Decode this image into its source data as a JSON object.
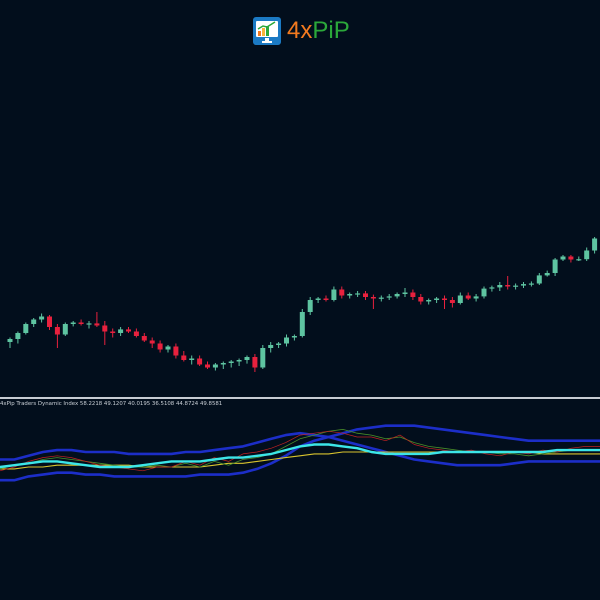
{
  "logo": {
    "text_a": "4x",
    "text_b": "PiP",
    "colors": {
      "orange": "#f37a1f",
      "green": "#2ba83a",
      "icon_bg": "#1b7ac4"
    },
    "icon": "monitor-chart-icon"
  },
  "indicator": {
    "label": "4xPip Traders Dynamic Index 58.2218 49.1207 40.0195 36.5108 44.8724 49.8581"
  },
  "colors": {
    "background": "#020e1c",
    "bull": "#5ec4a1",
    "bear": "#e8213e",
    "upper_band": "#1c2ec8",
    "lower_band": "#1c2ec8",
    "rsi_price_line": "#3ce6e8",
    "signal_line": "#d9c42e",
    "trade_signal_line": "#4a8f2a",
    "rsi_thin_line": "#c02222"
  },
  "chart_data": [
    {
      "type": "candlestick",
      "candles": [
        {
          "o": 0.1,
          "h": 0.25,
          "l": -0.1,
          "c": 0.2
        },
        {
          "o": 0.2,
          "h": 0.45,
          "l": 0.05,
          "c": 0.4
        },
        {
          "o": 0.4,
          "h": 0.75,
          "l": 0.35,
          "c": 0.7
        },
        {
          "o": 0.7,
          "h": 0.9,
          "l": 0.6,
          "c": 0.85
        },
        {
          "o": 0.85,
          "h": 1.05,
          "l": 0.75,
          "c": 0.95
        },
        {
          "o": 0.95,
          "h": 1.0,
          "l": 0.5,
          "c": 0.6
        },
        {
          "o": 0.6,
          "h": 0.7,
          "l": -0.1,
          "c": 0.35
        },
        {
          "o": 0.35,
          "h": 0.75,
          "l": 0.3,
          "c": 0.7
        },
        {
          "o": 0.7,
          "h": 0.8,
          "l": 0.62,
          "c": 0.75
        },
        {
          "o": 0.75,
          "h": 0.85,
          "l": 0.65,
          "c": 0.7
        },
        {
          "o": 0.7,
          "h": 0.8,
          "l": 0.55,
          "c": 0.72
        },
        {
          "o": 0.72,
          "h": 1.1,
          "l": 0.6,
          "c": 0.65
        },
        {
          "o": 0.65,
          "h": 0.8,
          "l": 0.0,
          "c": 0.45
        },
        {
          "o": 0.45,
          "h": 0.55,
          "l": 0.25,
          "c": 0.4
        },
        {
          "o": 0.4,
          "h": 0.6,
          "l": 0.3,
          "c": 0.52
        },
        {
          "o": 0.52,
          "h": 0.6,
          "l": 0.4,
          "c": 0.45
        },
        {
          "o": 0.45,
          "h": 0.55,
          "l": 0.25,
          "c": 0.3
        },
        {
          "o": 0.3,
          "h": 0.4,
          "l": 0.1,
          "c": 0.15
        },
        {
          "o": 0.15,
          "h": 0.25,
          "l": -0.1,
          "c": 0.05
        },
        {
          "o": 0.05,
          "h": 0.15,
          "l": -0.25,
          "c": -0.15
        },
        {
          "o": -0.15,
          "h": 0.0,
          "l": -0.25,
          "c": -0.05
        },
        {
          "o": -0.05,
          "h": 0.05,
          "l": -0.45,
          "c": -0.35
        },
        {
          "o": -0.35,
          "h": -0.2,
          "l": -0.55,
          "c": -0.5
        },
        {
          "o": -0.5,
          "h": -0.35,
          "l": -0.65,
          "c": -0.45
        },
        {
          "o": -0.45,
          "h": -0.35,
          "l": -0.7,
          "c": -0.65
        },
        {
          "o": -0.65,
          "h": -0.55,
          "l": -0.8,
          "c": -0.75
        },
        {
          "o": -0.75,
          "h": -0.6,
          "l": -0.85,
          "c": -0.65
        },
        {
          "o": -0.65,
          "h": -0.55,
          "l": -0.8,
          "c": -0.6
        },
        {
          "o": -0.6,
          "h": -0.5,
          "l": -0.75,
          "c": -0.55
        },
        {
          "o": -0.55,
          "h": -0.45,
          "l": -0.7,
          "c": -0.5
        },
        {
          "o": -0.5,
          "h": -0.35,
          "l": -0.62,
          "c": -0.4
        },
        {
          "o": -0.4,
          "h": -0.3,
          "l": -0.9,
          "c": -0.75
        },
        {
          "o": -0.75,
          "h": 0.0,
          "l": -0.8,
          "c": -0.1
        },
        {
          "o": -0.1,
          "h": 0.1,
          "l": -0.25,
          "c": 0.0
        },
        {
          "o": 0.0,
          "h": 0.1,
          "l": -0.1,
          "c": 0.05
        },
        {
          "o": 0.05,
          "h": 0.35,
          "l": -0.05,
          "c": 0.25
        },
        {
          "o": 0.25,
          "h": 0.35,
          "l": 0.15,
          "c": 0.3
        },
        {
          "o": 0.3,
          "h": 1.2,
          "l": 0.25,
          "c": 1.1
        },
        {
          "o": 1.1,
          "h": 1.6,
          "l": 1.0,
          "c": 1.5
        },
        {
          "o": 1.5,
          "h": 1.6,
          "l": 1.4,
          "c": 1.55
        },
        {
          "o": 1.55,
          "h": 1.65,
          "l": 1.45,
          "c": 1.5
        },
        {
          "o": 1.5,
          "h": 1.95,
          "l": 1.45,
          "c": 1.85
        },
        {
          "o": 1.85,
          "h": 1.95,
          "l": 1.55,
          "c": 1.65
        },
        {
          "o": 1.65,
          "h": 1.75,
          "l": 1.55,
          "c": 1.7
        },
        {
          "o": 1.7,
          "h": 1.8,
          "l": 1.6,
          "c": 1.72
        },
        {
          "o": 1.72,
          "h": 1.8,
          "l": 1.5,
          "c": 1.6
        },
        {
          "o": 1.6,
          "h": 1.68,
          "l": 1.2,
          "c": 1.55
        },
        {
          "o": 1.55,
          "h": 1.65,
          "l": 1.45,
          "c": 1.58
        },
        {
          "o": 1.58,
          "h": 1.7,
          "l": 1.5,
          "c": 1.62
        },
        {
          "o": 1.62,
          "h": 1.75,
          "l": 1.55,
          "c": 1.7
        },
        {
          "o": 1.7,
          "h": 1.9,
          "l": 1.6,
          "c": 1.75
        },
        {
          "o": 1.75,
          "h": 1.85,
          "l": 1.5,
          "c": 1.6
        },
        {
          "o": 1.6,
          "h": 1.7,
          "l": 1.35,
          "c": 1.45
        },
        {
          "o": 1.45,
          "h": 1.55,
          "l": 1.35,
          "c": 1.5
        },
        {
          "o": 1.5,
          "h": 1.6,
          "l": 1.4,
          "c": 1.55
        },
        {
          "o": 1.55,
          "h": 1.65,
          "l": 1.2,
          "c": 1.5
        },
        {
          "o": 1.5,
          "h": 1.6,
          "l": 1.25,
          "c": 1.4
        },
        {
          "o": 1.4,
          "h": 1.75,
          "l": 1.35,
          "c": 1.65
        },
        {
          "o": 1.65,
          "h": 1.75,
          "l": 1.5,
          "c": 1.55
        },
        {
          "o": 1.55,
          "h": 1.7,
          "l": 1.45,
          "c": 1.62
        },
        {
          "o": 1.62,
          "h": 1.95,
          "l": 1.55,
          "c": 1.88
        },
        {
          "o": 1.88,
          "h": 1.98,
          "l": 1.78,
          "c": 1.92
        },
        {
          "o": 1.92,
          "h": 2.1,
          "l": 1.8,
          "c": 2.0
        },
        {
          "o": 2.0,
          "h": 2.3,
          "l": 1.85,
          "c": 1.95
        },
        {
          "o": 1.95,
          "h": 2.05,
          "l": 1.85,
          "c": 1.98
        },
        {
          "o": 1.98,
          "h": 2.1,
          "l": 1.9,
          "c": 2.03
        },
        {
          "o": 2.03,
          "h": 2.12,
          "l": 1.95,
          "c": 2.05
        },
        {
          "o": 2.05,
          "h": 2.4,
          "l": 2.0,
          "c": 2.32
        },
        {
          "o": 2.32,
          "h": 2.48,
          "l": 2.28,
          "c": 2.4
        },
        {
          "o": 2.4,
          "h": 2.9,
          "l": 2.3,
          "c": 2.85
        },
        {
          "o": 2.85,
          "h": 3.0,
          "l": 2.8,
          "c": 2.95
        },
        {
          "o": 2.95,
          "h": 3.0,
          "l": 2.75,
          "c": 2.85
        },
        {
          "o": 2.85,
          "h": 2.95,
          "l": 2.8,
          "c": 2.86
        },
        {
          "o": 2.86,
          "h": 3.25,
          "l": 2.8,
          "c": 3.15
        },
        {
          "o": 3.15,
          "h": 3.6,
          "l": 3.05,
          "c": 3.55
        },
        {
          "o": 3.55,
          "h": 3.75,
          "l": 3.5,
          "c": 3.7
        }
      ]
    },
    {
      "type": "line",
      "series": [
        {
          "key": "upper_band",
          "values": [
            40,
            40,
            38,
            37,
            36,
            36,
            37,
            37,
            38,
            38,
            38,
            38,
            38,
            38,
            37,
            37,
            37,
            36,
            34,
            31,
            27,
            22,
            19,
            17,
            15,
            13,
            12,
            11,
            11,
            11,
            12,
            13,
            14,
            15,
            16,
            17,
            18,
            19,
            19,
            19,
            19,
            19,
            19
          ]
        },
        {
          "key": "lower_band",
          "values": [
            29,
            29,
            27,
            25,
            24,
            24,
            25,
            25,
            25,
            26,
            26,
            26,
            26,
            25,
            25,
            24,
            23,
            22,
            20,
            18,
            16,
            15,
            16,
            17,
            19,
            21,
            23,
            25,
            27,
            29,
            30,
            31,
            32,
            32,
            32,
            32,
            31,
            30,
            30,
            30,
            30,
            30,
            30
          ]
        },
        {
          "key": "signal_line",
          "values": [
            34,
            34,
            33,
            33,
            32,
            32,
            32,
            32,
            32,
            32,
            33,
            33,
            33,
            33,
            33,
            32,
            31,
            31,
            30,
            29,
            28,
            27,
            26,
            26,
            25,
            25,
            25,
            25,
            25,
            25,
            25,
            25,
            25,
            25,
            25,
            25,
            25,
            25,
            26,
            26,
            26,
            26,
            26
          ]
        },
        {
          "key": "rsi_price_line",
          "values": [
            33,
            32,
            31,
            30,
            30,
            31,
            32,
            33,
            33,
            33,
            32,
            31,
            30,
            30,
            30,
            29,
            28,
            28,
            27,
            26,
            24,
            22,
            21,
            21,
            22,
            23,
            25,
            26,
            26,
            26,
            26,
            25,
            25,
            25,
            25,
            25,
            25,
            25,
            25,
            24,
            24,
            24,
            24
          ]
        },
        {
          "key": "trade_signal_line",
          "values": [
            34,
            32,
            31,
            29,
            28,
            29,
            30,
            31,
            32,
            33,
            33,
            32,
            33,
            31,
            33,
            30,
            32,
            29,
            28,
            26,
            22,
            18,
            16,
            14,
            13,
            15,
            16,
            18,
            17,
            20,
            22,
            23,
            24,
            25,
            25,
            26,
            26,
            27,
            26,
            25,
            24,
            24,
            24
          ]
        },
        {
          "key": "rsi_thin_line",
          "values": [
            35,
            33,
            30,
            28,
            27,
            28,
            30,
            32,
            33,
            34,
            35,
            33,
            33,
            30,
            32,
            28,
            30,
            26,
            25,
            23,
            20,
            16,
            15,
            14,
            15,
            17,
            17,
            19,
            16,
            21,
            23,
            24,
            25,
            24,
            26,
            27,
            25,
            26,
            24,
            25,
            23,
            22,
            22
          ]
        }
      ]
    }
  ]
}
